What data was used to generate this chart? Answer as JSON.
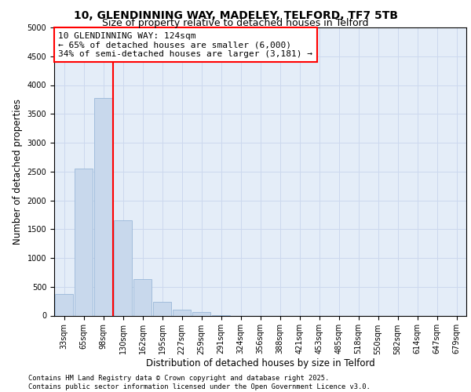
{
  "title_line1": "10, GLENDINNING WAY, MADELEY, TELFORD, TF7 5TB",
  "title_line2": "Size of property relative to detached houses in Telford",
  "xlabel": "Distribution of detached houses by size in Telford",
  "ylabel": "Number of detached properties",
  "categories": [
    "33sqm",
    "65sqm",
    "98sqm",
    "130sqm",
    "162sqm",
    "195sqm",
    "227sqm",
    "259sqm",
    "291sqm",
    "324sqm",
    "356sqm",
    "388sqm",
    "421sqm",
    "453sqm",
    "485sqm",
    "518sqm",
    "550sqm",
    "582sqm",
    "614sqm",
    "647sqm",
    "679sqm"
  ],
  "values": [
    380,
    2550,
    3780,
    1650,
    630,
    240,
    100,
    55,
    5,
    0,
    0,
    0,
    0,
    0,
    0,
    0,
    0,
    0,
    0,
    0,
    0
  ],
  "bar_color": "#c8d8ec",
  "bar_edge_color": "#9ab8d8",
  "red_line_x": 2.5,
  "annotation_text": "10 GLENDINNING WAY: 124sqm\n← 65% of detached houses are smaller (6,000)\n34% of semi-detached houses are larger (3,181) →",
  "annotation_box_color": "white",
  "annotation_box_edge": "red",
  "vline_color": "red",
  "ylim": [
    0,
    5000
  ],
  "yticks": [
    0,
    500,
    1000,
    1500,
    2000,
    2500,
    3000,
    3500,
    4000,
    4500,
    5000
  ],
  "grid_color": "#ccd8ee",
  "background_color": "#e4edf8",
  "footer_text": "Contains HM Land Registry data © Crown copyright and database right 2025.\nContains public sector information licensed under the Open Government Licence v3.0.",
  "title_fontsize": 10,
  "subtitle_fontsize": 9,
  "tick_fontsize": 7,
  "label_fontsize": 8.5,
  "annotation_fontsize": 8
}
